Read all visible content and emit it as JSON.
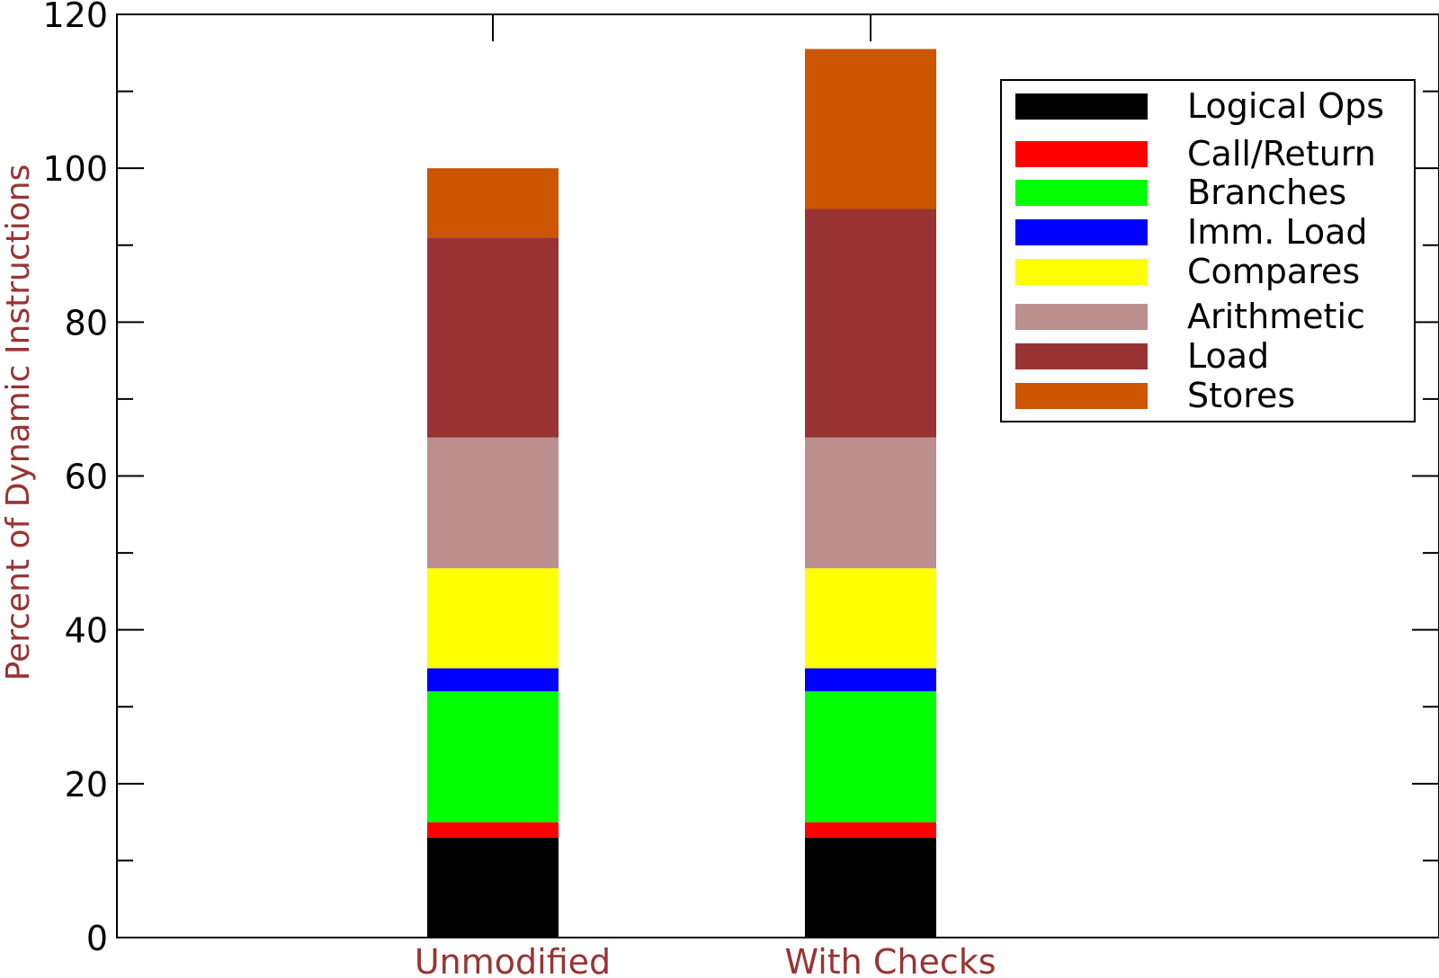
{
  "chart_data": {
    "type": "bar",
    "stacked": true,
    "categories": [
      "Unmodified",
      "With Checks"
    ],
    "series": [
      {
        "name": "Logical Ops",
        "color": "#000000",
        "values": [
          13,
          13
        ]
      },
      {
        "name": "Call/Return",
        "color": "#ff0000",
        "values": [
          2,
          2
        ]
      },
      {
        "name": "Branches",
        "color": "#00ff00",
        "values": [
          17,
          17
        ]
      },
      {
        "name": "Imm. Load",
        "color": "#0000ff",
        "values": [
          3,
          3
        ]
      },
      {
        "name": "Compares",
        "color": "#ffff00",
        "values": [
          13,
          13
        ]
      },
      {
        "name": "Arithmetic",
        "color": "#bc8f8f",
        "values": [
          17,
          17
        ]
      },
      {
        "name": "Load",
        "color": "#993333",
        "values": [
          26,
          29.7
        ]
      },
      {
        "name": "Stores",
        "color": "#cc5500",
        "values": [
          9,
          20.8
        ]
      }
    ],
    "ylabel": "Percent of Dynamic Instructions",
    "xlabel": "",
    "ylim": [
      0,
      120
    ],
    "yticks": [
      "0",
      "20",
      "40",
      "60",
      "80",
      "100",
      "120"
    ],
    "legend_position": "top-right",
    "grid": false,
    "label_color": "#993333"
  }
}
